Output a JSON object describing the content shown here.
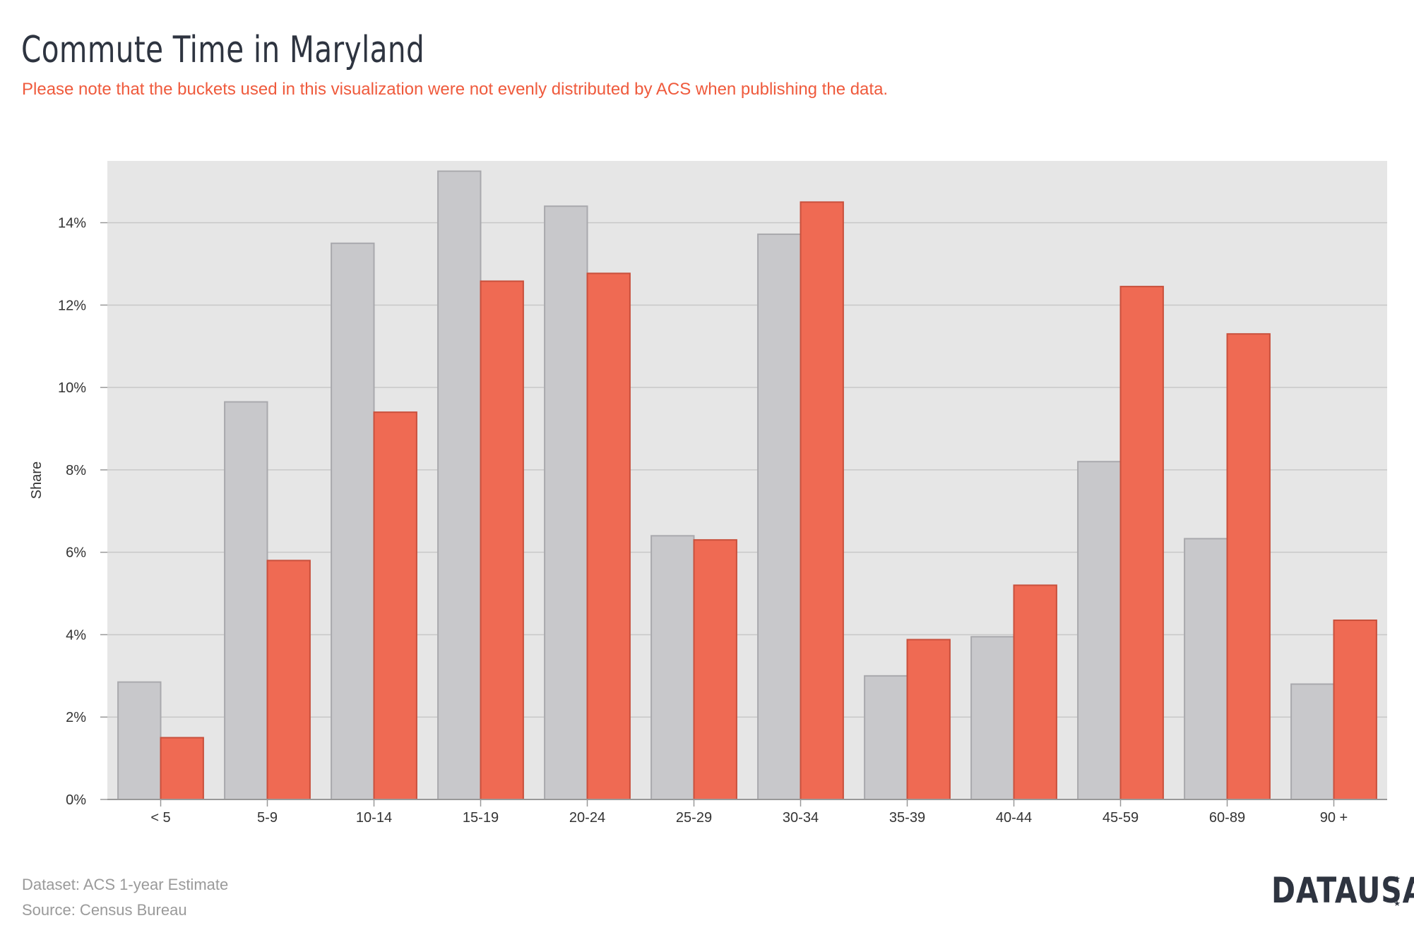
{
  "title": "Commute Time in Maryland",
  "subtitle": "Please note that the buckets used in this visualization were not evenly distributed by ACS when publishing the data.",
  "footer": {
    "dataset": "Dataset: ACS 1-year Estimate",
    "source": "Source: Census Bureau"
  },
  "brand": {
    "text": "DATAUSA",
    "icon": "stars-icon"
  },
  "colors": {
    "plot_background": "#e6e6e6",
    "grid": "#c8c8c8",
    "series_gray_fill": "#c8c8cb",
    "series_gray_stroke": "#a9a9ad",
    "series_red_fill": "#ef6a53",
    "series_red_stroke": "#c9503c",
    "accent_text": "#ef5a3c",
    "title_text": "#2e3440"
  },
  "chart_data": {
    "type": "bar",
    "ylabel": "Share",
    "xlabel": "",
    "categories": [
      "< 5",
      "5-9",
      "10-14",
      "15-19",
      "20-24",
      "25-29",
      "30-34",
      "35-39",
      "40-44",
      "45-59",
      "60-89",
      "90 +"
    ],
    "ylim": [
      0,
      15.5
    ],
    "yticks": [
      0,
      2,
      4,
      6,
      8,
      10,
      12,
      14
    ],
    "ytick_labels": [
      "0%",
      "2%",
      "4%",
      "6%",
      "8%",
      "10%",
      "12%",
      "14%"
    ],
    "grid": true,
    "legend": "none",
    "series": [
      {
        "color": "gray",
        "values": [
          2.85,
          9.65,
          13.5,
          15.25,
          14.4,
          6.4,
          13.72,
          3.0,
          3.95,
          8.2,
          6.33,
          2.8
        ]
      },
      {
        "color": "red",
        "values": [
          1.5,
          5.8,
          9.4,
          12.58,
          12.77,
          6.3,
          14.5,
          3.88,
          5.2,
          12.45,
          11.3,
          4.35
        ]
      }
    ]
  }
}
